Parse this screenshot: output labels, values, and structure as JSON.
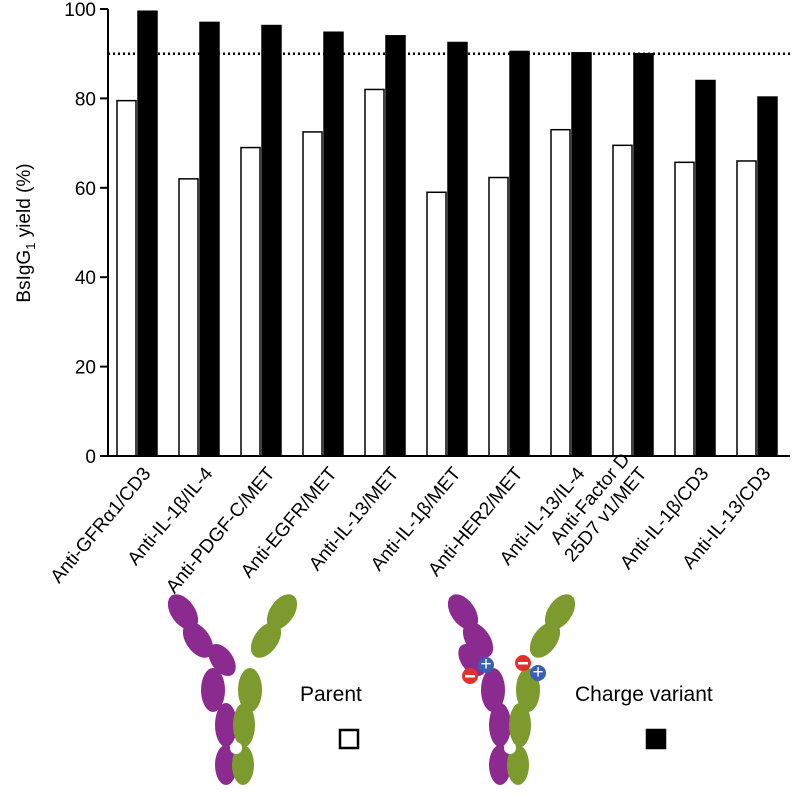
{
  "chart_data": {
    "type": "bar",
    "ylabel": [
      "BsIgG",
      "1",
      " yield (%)"
    ],
    "categories": [
      "Anti-GFRα1/CD3",
      "Anti-IL-1β/IL-4",
      "Anti-PDGF-C/MET",
      "Anti-EGFR/MET",
      "Anti-IL-13/MET",
      "Anti-IL-1β/MET",
      "Anti-HER2/MET",
      "Anti-IL-13/IL-4",
      "Anti-Factor D\n25D7 v1/MET",
      "Anti-IL-1β/CD3",
      "Anti-IL-13/CD3"
    ],
    "series": [
      {
        "name": "Parent",
        "color": "#ffffff",
        "values": [
          79.5,
          62,
          69,
          72.5,
          82,
          59,
          62.3,
          73,
          69.5,
          65.7,
          66
        ]
      },
      {
        "name": "Charge variant",
        "color": "#000000",
        "values": [
          99.5,
          97,
          96.3,
          94.8,
          94,
          92.5,
          90.5,
          90.2,
          90,
          84,
          80.3
        ]
      }
    ],
    "ylim": [
      0,
      100
    ],
    "yticks": [
      0,
      20,
      40,
      60,
      80,
      100
    ],
    "reference_line": 90
  }
}
